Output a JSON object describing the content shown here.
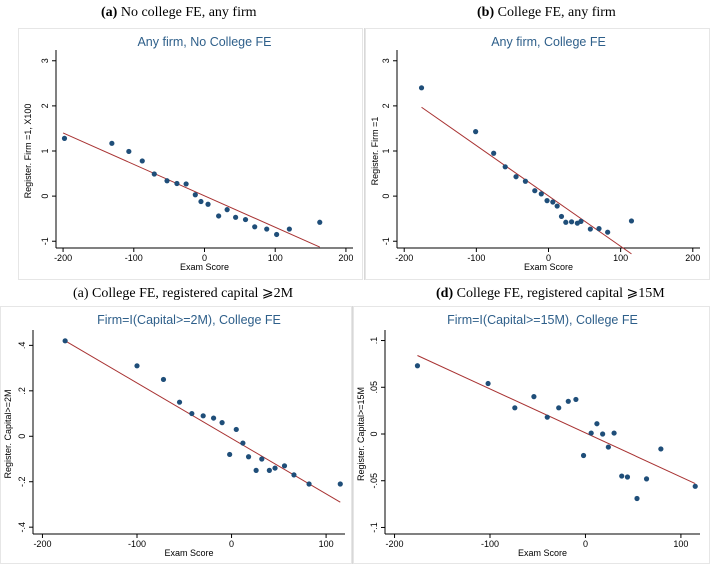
{
  "captions": [
    {
      "tag": "(a)",
      "text": "No college FE, any firm"
    },
    {
      "tag": "(b)",
      "text": "College FE, any firm"
    },
    {
      "tag": "(a)",
      "text": "College FE, registered capital ⩾2M"
    },
    {
      "tag": "(d)",
      "text": "College FE, registered capital ⩾15M"
    }
  ],
  "colors": {
    "points": "#1f4e79",
    "fit_line": "#a83232",
    "title": "#2e5f8a",
    "frame": "#e6e6e6"
  },
  "chart_data": [
    {
      "type": "scatter",
      "title": "Any firm, No College FE",
      "xlabel": "Exam Score",
      "ylabel": "Register. Firm =1, X100",
      "xlim": [
        -210,
        210
      ],
      "ylim": [
        -1.15,
        3.15
      ],
      "xticks": [
        -200,
        -100,
        0,
        100,
        200
      ],
      "yticks": [
        -1,
        0,
        1,
        2,
        3
      ],
      "ytick_labels": [
        "-1",
        "0",
        "1",
        "2",
        "3"
      ],
      "grid": false,
      "x": [
        -198,
        -131,
        -107,
        -88,
        -71,
        -53,
        -39,
        -26,
        -13,
        -5,
        5,
        20,
        32,
        44,
        58,
        71,
        88,
        102,
        120,
        163
      ],
      "y": [
        1.28,
        1.17,
        0.99,
        0.78,
        0.49,
        0.34,
        0.28,
        0.27,
        0.03,
        -0.12,
        -0.18,
        -0.44,
        -0.3,
        -0.47,
        -0.52,
        -0.68,
        -0.73,
        -0.85,
        -0.73,
        -0.58
      ],
      "fit": {
        "x": [
          -200,
          163
        ],
        "y": [
          1.4,
          -1.13
        ]
      }
    },
    {
      "type": "scatter",
      "title": "Any firm, College FE",
      "xlabel": "Exam Score",
      "ylabel": "Register. Firm =1",
      "xlim": [
        -210,
        210
      ],
      "ylim": [
        -1.15,
        3.15
      ],
      "xticks": [
        -200,
        -100,
        0,
        100,
        200
      ],
      "yticks": [
        -1,
        0,
        1,
        2,
        3
      ],
      "ytick_labels": [
        "-1",
        "0",
        "1",
        "2",
        "3"
      ],
      "grid": false,
      "x": [
        -176,
        -101,
        -76,
        -60,
        -45,
        -32,
        -19,
        -10,
        -2,
        6,
        12,
        18,
        24,
        32,
        40,
        45,
        58,
        70,
        82,
        115
      ],
      "y": [
        2.4,
        1.43,
        0.95,
        0.65,
        0.43,
        0.33,
        0.12,
        0.05,
        -0.1,
        -0.13,
        -0.22,
        -0.45,
        -0.58,
        -0.57,
        -0.6,
        -0.56,
        -0.73,
        -0.72,
        -0.8,
        -0.55
      ],
      "fit": {
        "x": [
          -176,
          115
        ],
        "y": [
          1.97,
          -1.28
        ]
      }
    },
    {
      "type": "scatter",
      "title": "Firm=I(Capital>=2M), College FE",
      "xlabel": "Exam Score",
      "ylabel": "Register. Capital>=2M",
      "xlim": [
        -210,
        120
      ],
      "ylim": [
        -0.43,
        0.45
      ],
      "xticks": [
        -200,
        -100,
        0,
        100
      ],
      "yticks": [
        -0.4,
        -0.2,
        0,
        0.2,
        0.4
      ],
      "ytick_labels": [
        "-.4",
        "-.2",
        "0",
        ".2",
        ".4"
      ],
      "grid": false,
      "x": [
        -176,
        -100,
        -72,
        -55,
        -42,
        -30,
        -19,
        -10,
        -2,
        5,
        12,
        18,
        26,
        32,
        40,
        46,
        56,
        66,
        82,
        115
      ],
      "y": [
        0.42,
        0.31,
        0.25,
        0.15,
        0.1,
        0.09,
        0.08,
        0.06,
        -0.08,
        0.03,
        -0.03,
        -0.09,
        -0.15,
        -0.1,
        -0.15,
        -0.14,
        -0.13,
        -0.17,
        -0.21,
        -0.21
      ],
      "fit": {
        "x": [
          -176,
          115
        ],
        "y": [
          0.42,
          -0.29
        ]
      }
    },
    {
      "type": "scatter",
      "title": "Firm=I(Capital>=15M), College FE",
      "xlabel": "Exam Score",
      "ylabel": "Register. Capital>=15M",
      "xlim": [
        -210,
        120
      ],
      "ylim": [
        -0.107,
        0.107
      ],
      "xticks": [
        -200,
        -100,
        0,
        100
      ],
      "yticks": [
        -0.1,
        -0.05,
        0,
        0.05,
        0.1
      ],
      "ytick_labels": [
        "-.1",
        "-.05",
        "0",
        ".05",
        ".1"
      ],
      "grid": false,
      "x": [
        -176,
        -102,
        -74,
        -54,
        -40,
        -28,
        -18,
        -10,
        -2,
        6,
        12,
        18,
        24,
        30,
        38,
        44,
        54,
        64,
        79,
        115
      ],
      "y": [
        0.073,
        0.054,
        0.028,
        0.04,
        0.018,
        0.028,
        0.035,
        0.037,
        -0.023,
        0.001,
        0.011,
        0.0,
        -0.014,
        0.001,
        -0.045,
        -0.046,
        -0.069,
        -0.048,
        -0.016,
        -0.056
      ],
      "fit": {
        "x": [
          -176,
          115
        ],
        "y": [
          0.084,
          -0.053
        ]
      }
    }
  ]
}
